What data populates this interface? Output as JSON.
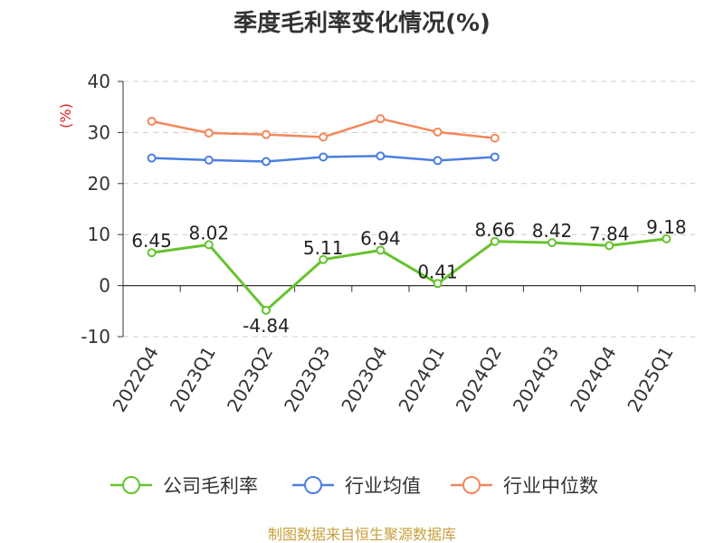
{
  "chart_data": {
    "type": "line",
    "title": "季度毛利率变化情况(%)",
    "ylabel": "(%)",
    "ylim": [
      -10,
      40
    ],
    "yticks": [
      -10,
      0,
      10,
      20,
      30,
      40
    ],
    "categories": [
      "2022Q4",
      "2023Q1",
      "2023Q2",
      "2023Q3",
      "2023Q4",
      "2024Q1",
      "2024Q2",
      "2024Q3",
      "2024Q4",
      "2025Q1"
    ],
    "grid": "horizontal dashed",
    "legend_position": "bottom",
    "series": [
      {
        "name": "公司毛利率",
        "color": "#66c32e",
        "values": [
          6.45,
          8.02,
          -4.84,
          5.11,
          6.94,
          0.41,
          8.66,
          8.42,
          7.84,
          9.18
        ],
        "labels": [
          "6.45",
          "8.02",
          "-4.84",
          "5.11",
          "6.94",
          "0.41",
          "8.66",
          "8.42",
          "7.84",
          "9.18"
        ]
      },
      {
        "name": "行业均值",
        "color": "#4a7fe0",
        "values": [
          25.0,
          24.6,
          24.3,
          25.2,
          25.4,
          24.5,
          25.2,
          null,
          null,
          null
        ]
      },
      {
        "name": "行业中位数",
        "color": "#f4875a",
        "values": [
          32.2,
          29.9,
          29.6,
          29.1,
          32.7,
          30.1,
          28.9,
          null,
          null,
          null
        ]
      }
    ]
  },
  "source": "制图数据来自恒生聚源数据库"
}
